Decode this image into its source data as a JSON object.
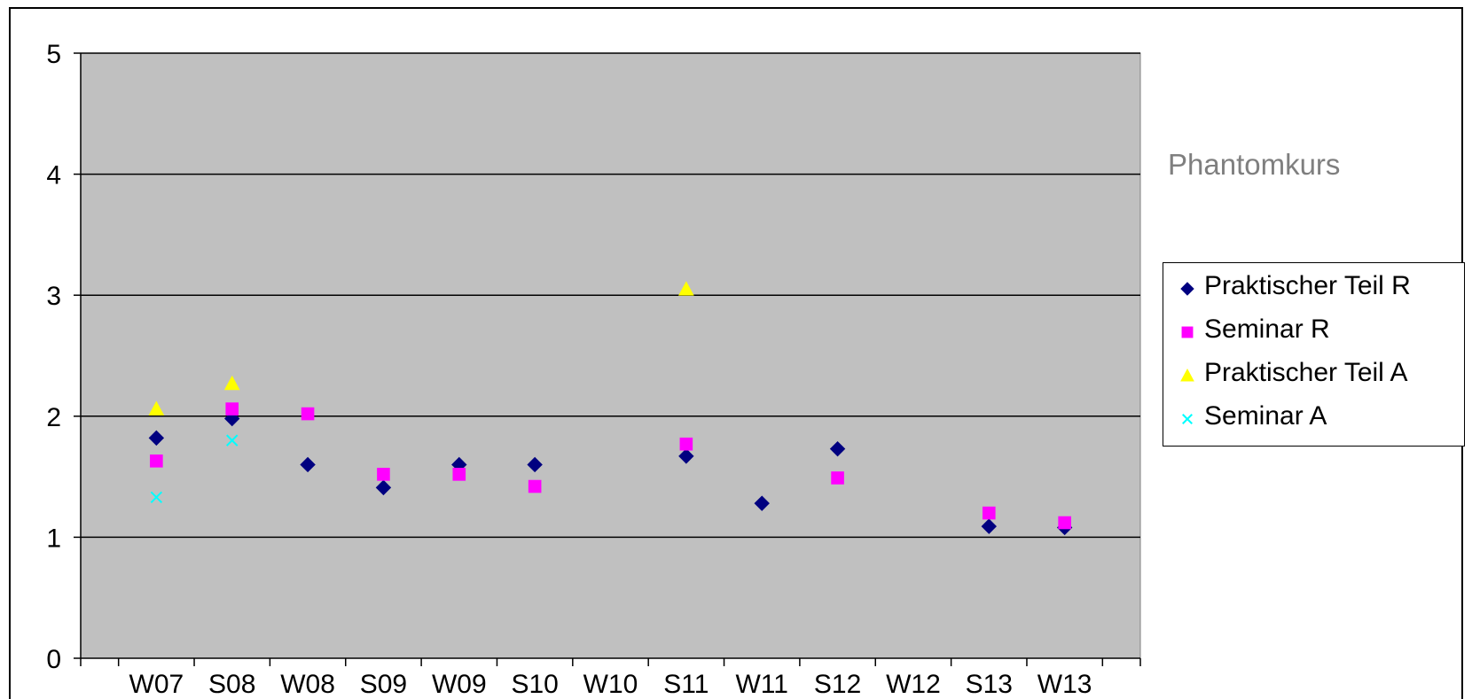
{
  "side_title": "Phantomkurs",
  "chart_data": {
    "type": "scatter",
    "title": "",
    "xlabel": "",
    "ylabel": "",
    "categories": [
      "W07",
      "S08",
      "W08",
      "S09",
      "W09",
      "S10",
      "W10",
      "S11",
      "W11",
      "S12",
      "W12",
      "S13",
      "W13"
    ],
    "ylim": [
      0,
      5
    ],
    "yticks": [
      0,
      1,
      2,
      3,
      4,
      5
    ],
    "grid": "horizontal major",
    "plot_background": "#c0c0c0",
    "legend_position": "right",
    "series": [
      {
        "name": "Praktischer Teil R",
        "marker": "diamond",
        "color": "#000080",
        "values": [
          1.82,
          1.98,
          1.6,
          1.41,
          1.6,
          1.6,
          null,
          1.67,
          1.28,
          1.73,
          null,
          1.09,
          1.08
        ]
      },
      {
        "name": "Seminar R",
        "marker": "square",
        "color": "#ff00ff",
        "values": [
          1.63,
          2.06,
          2.02,
          1.52,
          1.52,
          1.42,
          null,
          1.77,
          null,
          1.49,
          null,
          1.2,
          1.12
        ]
      },
      {
        "name": "Praktischer Teil A",
        "marker": "triangle",
        "color": "#ffff00",
        "values": [
          2.06,
          2.27,
          null,
          null,
          null,
          null,
          null,
          3.05,
          null,
          null,
          null,
          null,
          null
        ]
      },
      {
        "name": "Seminar A",
        "marker": "x",
        "color": "#00ffff",
        "values": [
          1.33,
          1.8,
          null,
          null,
          null,
          null,
          null,
          null,
          null,
          null,
          null,
          null,
          null
        ]
      }
    ]
  }
}
